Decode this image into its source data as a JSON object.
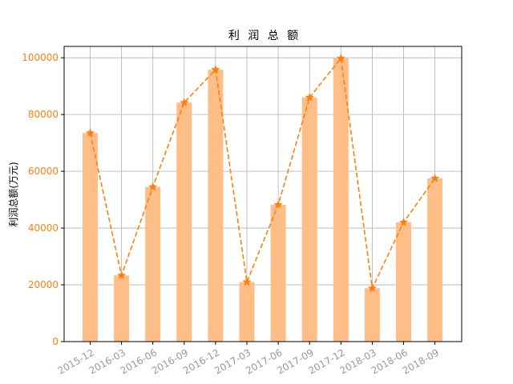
{
  "chart_data": {
    "type": "bar",
    "title": "利 润 总 额",
    "xlabel": "",
    "ylabel": "利润总额(万元)",
    "categories": [
      "2015-12",
      "2016-03",
      "2016-06",
      "2016-09",
      "2016-12",
      "2017-03",
      "2017-06",
      "2017-09",
      "2017-12",
      "2018-03",
      "2018-06",
      "2018-09"
    ],
    "values": [
      73500,
      23300,
      54500,
      84200,
      95800,
      21000,
      48200,
      86000,
      99800,
      18800,
      42000,
      57500
    ],
    "ylim": [
      0,
      104000
    ],
    "yticks": [
      "0",
      "20000",
      "40000",
      "60000",
      "80000",
      "100000"
    ],
    "ytick_values": [
      0,
      20000,
      40000,
      60000,
      80000,
      100000
    ],
    "grid": true,
    "overlay": {
      "type": "line",
      "style": "dashed",
      "marker": "star"
    },
    "colors": {
      "bar": "#ffbe87",
      "line": "#ff7f0e",
      "axis_tick_y": "#ff7f0e",
      "axis_tick_x": "#999999",
      "grid": "#b0b0b0"
    }
  }
}
